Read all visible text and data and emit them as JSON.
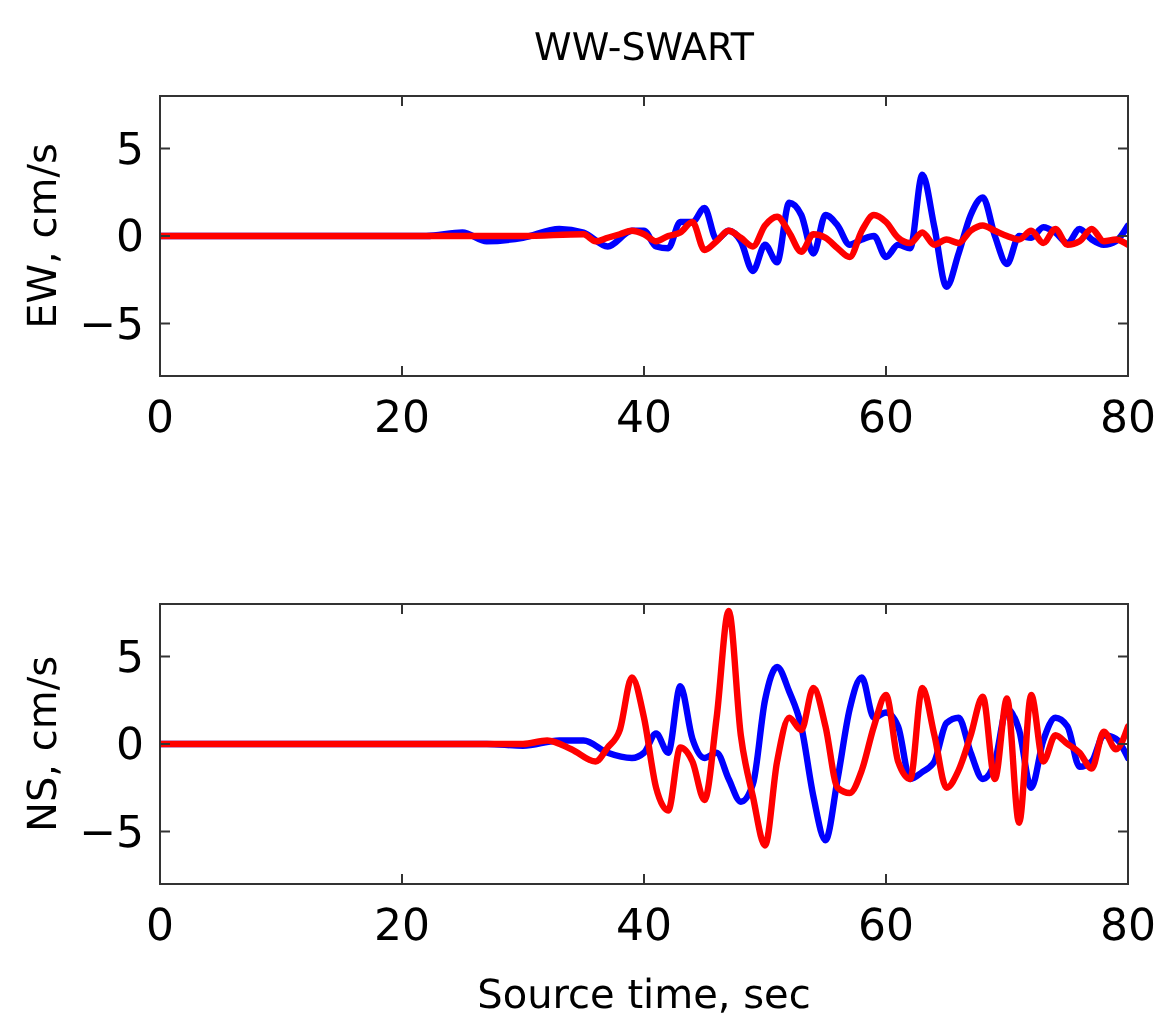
{
  "chart_data": [
    {
      "type": "line",
      "title": "WW-SWART",
      "ylabel": "EW, cm/s",
      "xlim": [
        0,
        80
      ],
      "xticks": [
        0,
        20,
        40,
        60,
        80
      ],
      "ylim": [
        -8,
        8
      ],
      "yticks": [
        -5,
        0,
        5
      ],
      "grid": false,
      "line_style": "solid",
      "marker": "none",
      "series": [
        {
          "color": "#0000ff",
          "x": [
            0,
            22,
            25,
            27,
            30,
            33,
            35,
            37,
            39,
            40,
            41,
            42,
            43,
            44,
            45,
            46,
            47,
            48,
            49,
            50,
            51,
            52,
            53,
            54,
            55,
            56,
            57,
            58,
            59,
            60,
            61,
            62,
            63,
            64,
            65,
            66,
            67,
            68,
            69,
            70,
            71,
            72,
            73,
            74,
            75,
            76,
            77,
            78,
            79,
            80
          ],
          "values": [
            0,
            0,
            0.2,
            -0.3,
            -0.1,
            0.4,
            0.2,
            -0.6,
            0.3,
            0.3,
            -0.6,
            -0.7,
            0.8,
            0.8,
            1.6,
            -0.2,
            0.3,
            -0.3,
            -2.0,
            -0.5,
            -1.5,
            1.9,
            1.2,
            -1.0,
            1.2,
            0.6,
            -0.5,
            -0.2,
            0.0,
            -1.2,
            -0.5,
            -0.7,
            3.5,
            0.5,
            -2.9,
            -1.0,
            1.2,
            2.2,
            0.0,
            -1.6,
            0.0,
            -0.1,
            0.5,
            0.2,
            -0.4,
            0.4,
            -0.2,
            -0.5,
            -0.3,
            0.6
          ]
        },
        {
          "color": "#ff0000",
          "x": [
            0,
            30,
            35,
            36,
            37,
            38,
            39,
            40,
            41,
            42,
            43,
            44,
            45,
            46,
            47,
            48,
            49,
            50,
            51,
            52,
            53,
            54,
            55,
            56,
            57,
            58,
            59,
            60,
            61,
            62,
            63,
            64,
            65,
            66,
            67,
            68,
            69,
            70,
            71,
            72,
            73,
            74,
            75,
            76,
            77,
            78,
            79,
            80
          ],
          "values": [
            0,
            0,
            0.1,
            -0.3,
            -0.1,
            0.1,
            0.3,
            0.1,
            -0.3,
            0,
            0.2,
            0.8,
            -0.8,
            -0.3,
            0.3,
            -0.1,
            -0.6,
            0.6,
            1.1,
            0.2,
            -0.9,
            0.1,
            -0.1,
            -0.7,
            -1.2,
            0.3,
            1.2,
            0.8,
            -0.1,
            -0.4,
            0.2,
            -0.5,
            -0.2,
            -0.4,
            0.3,
            0.6,
            0.3,
            0.0,
            -0.2,
            0.3,
            -0.4,
            0.4,
            -0.5,
            -0.3,
            0.4,
            -0.3,
            -0.2,
            -0.5
          ]
        }
      ]
    },
    {
      "type": "line",
      "xlabel": "Source time, sec",
      "ylabel": "NS, cm/s",
      "xlim": [
        0,
        80
      ],
      "xticks": [
        0,
        20,
        40,
        60,
        80
      ],
      "ylim": [
        -8,
        8
      ],
      "yticks": [
        -5,
        0,
        5
      ],
      "grid": false,
      "line_style": "solid",
      "marker": "none",
      "series": [
        {
          "color": "#0000ff",
          "x": [
            0,
            27,
            30,
            33,
            35,
            37,
            39,
            40,
            41,
            42,
            43,
            44,
            45,
            46,
            47,
            48,
            49,
            50,
            51,
            52,
            53,
            54,
            55,
            56,
            57,
            58,
            59,
            60,
            61,
            62,
            63,
            64,
            65,
            66,
            67,
            68,
            69,
            70,
            71,
            72,
            73,
            74,
            75,
            76,
            77,
            78,
            79,
            80
          ],
          "values": [
            0,
            0,
            -0.1,
            0.2,
            0.2,
            -0.5,
            -0.8,
            -0.5,
            0.6,
            -0.5,
            3.3,
            0.3,
            -0.8,
            -0.5,
            -2.0,
            -3.3,
            -2.3,
            2.5,
            4.4,
            3.0,
            1.0,
            -3.0,
            -5.5,
            -2.0,
            2.0,
            3.8,
            1.5,
            1.8,
            1.0,
            -2.0,
            -1.6,
            -1.0,
            1.2,
            1.5,
            -0.5,
            -2.0,
            -1.0,
            2.0,
            0.8,
            -2.5,
            0.2,
            1.5,
            1.0,
            -1.3,
            -1.0,
            0.5,
            0.3,
            -0.8
          ]
        },
        {
          "color": "#ff0000",
          "x": [
            0,
            30,
            32,
            34,
            36,
            37,
            38,
            39,
            40,
            41,
            42,
            43,
            44,
            45,
            46,
            47,
            48,
            49,
            50,
            51,
            52,
            53,
            54,
            55,
            56,
            57,
            58,
            59,
            60,
            61,
            62,
            63,
            64,
            65,
            66,
            67,
            68,
            69,
            70,
            71,
            72,
            73,
            74,
            75,
            76,
            77,
            78,
            79,
            80
          ],
          "values": [
            0,
            0,
            0.2,
            -0.3,
            -1.0,
            -0.2,
            0.8,
            3.8,
            1.5,
            -2.5,
            -3.8,
            -0.2,
            -1.0,
            -3.2,
            1.5,
            7.6,
            0.5,
            -3.0,
            -5.8,
            -1.0,
            1.5,
            0.8,
            3.2,
            1.0,
            -2.5,
            -2.8,
            -1.5,
            1.0,
            2.8,
            -1.0,
            -2.0,
            3.2,
            0.5,
            -2.5,
            -1.5,
            0.5,
            2.7,
            -2.0,
            2.6,
            -4.5,
            2.8,
            -1.0,
            0.5,
            0,
            -0.5,
            -1.4,
            0.7,
            -0.3,
            1.0
          ]
        }
      ]
    }
  ]
}
